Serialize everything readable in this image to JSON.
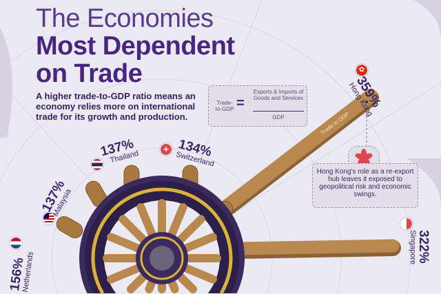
{
  "title": {
    "line1": "The Economies",
    "line2": "Most Dependent",
    "line3": "on Trade"
  },
  "description": "A higher trade-to-GDP ratio means an economy relies more on international trade for its growth and production.",
  "formula": {
    "lhs": "Trade-to-GDP",
    "equals": "=",
    "numerator": "Exports & Imports of Goods and Services",
    "denominator": "GDP"
  },
  "handle_label": "Trade to GDP",
  "note": "Hong Kong's role as a re-export hub leaves it exposed to geopolitical risk and economic swings.",
  "countries": [
    {
      "name": "Hong Kong",
      "value": "359%",
      "flag": "hong-kong"
    },
    {
      "name": "Singapore",
      "value": "322%",
      "flag": "singapore"
    },
    {
      "name": "Netherlands",
      "value": "156%",
      "flag": "netherlands"
    },
    {
      "name": "Malaysia",
      "value": "137%",
      "flag": "malaysia"
    },
    {
      "name": "Thailand",
      "value": "137%",
      "flag": "thailand"
    },
    {
      "name": "Switzerland",
      "value": "134%",
      "flag": "switzerland"
    }
  ],
  "colors": {
    "title": "#4a2580",
    "background": "#ebe9f2",
    "wood": "#b8884e",
    "wheel_dark": "#3b2a5e",
    "accent_gold": "#d9b23a"
  }
}
